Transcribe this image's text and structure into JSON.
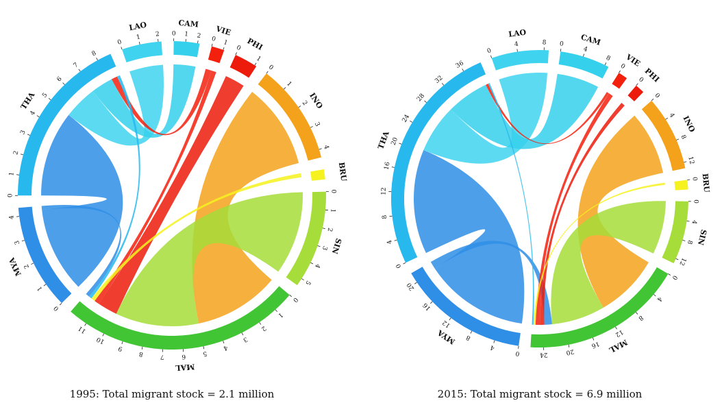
{
  "colors": {
    "THA": "#27b8ee",
    "LAO": "#3fd3f0",
    "CAM": "#35d0ec",
    "VIE": "#f2200d",
    "PHI": "#ec1b0b",
    "INO": "#f4a21b",
    "BRU": "#f6f21f",
    "SIN": "#a6dd3a",
    "MAL": "#42c535",
    "MYA": "#2f8ee6"
  },
  "chart_data": [
    {
      "type": "chord",
      "caption": "1995: Total migrant stock = 2.1 million",
      "ribbon_receivers": [
        "THA",
        "MAL"
      ],
      "nodes": [
        {
          "id": "LAO",
          "label": "LAO",
          "color_key": "LAO",
          "ticks": [
            "0",
            "1",
            "2"
          ]
        },
        {
          "id": "CAM",
          "label": "CAM",
          "color_key": "CAM",
          "ticks": [
            "0",
            "1",
            "2"
          ]
        },
        {
          "id": "VIE",
          "label": "VIE",
          "color_key": "VIE",
          "ticks": [
            "0",
            "1"
          ]
        },
        {
          "id": "PHI",
          "label": "PHI",
          "color_key": "PHI",
          "ticks": [
            "0",
            "1"
          ]
        },
        {
          "id": "INO",
          "label": "INO",
          "color_key": "INO",
          "ticks": [
            "0",
            "1",
            "2",
            "3",
            "4"
          ]
        },
        {
          "id": "BRU",
          "label": "BRU",
          "color_key": "BRU",
          "ticks": []
        },
        {
          "id": "SIN",
          "label": "SIN",
          "color_key": "SIN",
          "ticks": [
            "0",
            "1",
            "2",
            "3",
            "4",
            "5"
          ]
        },
        {
          "id": "MAL",
          "label": "MAL",
          "color_key": "MAL",
          "ticks": [
            "0",
            "1",
            "2",
            "3",
            "4",
            "5",
            "6",
            "7",
            "8",
            "9",
            "10",
            "11"
          ]
        },
        {
          "id": "MYA",
          "label": "MYA",
          "color_key": "MYA",
          "ticks": [
            "0",
            "1",
            "2",
            "3",
            "4"
          ]
        },
        {
          "id": "THA",
          "label": "THA",
          "color_key": "THA",
          "ticks": [
            "0",
            "1",
            "2",
            "3",
            "4",
            "5",
            "6",
            "7",
            "8"
          ]
        }
      ],
      "flows": [
        {
          "from": "MYA",
          "to": "THA",
          "value": 4.3
        },
        {
          "from": "LAO",
          "to": "THA",
          "value": 1.7
        },
        {
          "from": "CAM",
          "to": "THA",
          "value": 1.1
        },
        {
          "from": "VIE",
          "to": "THA",
          "value": 0.3
        },
        {
          "from": "INO",
          "to": "MAL",
          "value": 4.3
        },
        {
          "from": "SIN",
          "to": "MAL",
          "value": 4.2
        },
        {
          "from": "PHI",
          "to": "MAL",
          "value": 1.0
        },
        {
          "from": "VIE",
          "to": "MAL",
          "value": 0.25
        },
        {
          "from": "BRU",
          "to": "MAL",
          "value": 0.2
        },
        {
          "from": "THA",
          "to": "MAL",
          "value": 0.15
        },
        {
          "from": "MYA",
          "to": "MAL",
          "value": 0.2
        }
      ]
    },
    {
      "type": "chord",
      "caption": "2015: Total migrant stock = 6.9 million",
      "ribbon_receivers": [
        "THA",
        "MAL"
      ],
      "nodes": [
        {
          "id": "LAO",
          "label": "LAO",
          "color_key": "LAO",
          "ticks": [
            "0",
            "4",
            "8"
          ]
        },
        {
          "id": "CAM",
          "label": "CAM",
          "color_key": "CAM",
          "ticks": [
            "0",
            "4",
            "8"
          ]
        },
        {
          "id": "VIE",
          "label": "VIE",
          "color_key": "VIE",
          "ticks": [
            "0"
          ]
        },
        {
          "id": "PHI",
          "label": "PHI",
          "color_key": "PHI",
          "ticks": [
            "0"
          ]
        },
        {
          "id": "INO",
          "label": "INO",
          "color_key": "INO",
          "ticks": [
            "0",
            "4",
            "8",
            "12"
          ]
        },
        {
          "id": "BRU",
          "label": "BRU",
          "color_key": "BRU",
          "ticks": [
            "0"
          ]
        },
        {
          "id": "SIN",
          "label": "SIN",
          "color_key": "SIN",
          "ticks": [
            "0",
            "4",
            "8",
            "12"
          ]
        },
        {
          "id": "MAL",
          "label": "MAL",
          "color_key": "MAL",
          "ticks": [
            "0",
            "4",
            "8",
            "12",
            "16",
            "20",
            "24"
          ]
        },
        {
          "id": "MYA",
          "label": "MYA",
          "color_key": "MYA",
          "ticks": [
            "0",
            "4",
            "8",
            "12",
            "16",
            "20"
          ]
        },
        {
          "id": "THA",
          "label": "THA",
          "color_key": "THA",
          "ticks": [
            "0",
            "4",
            "8",
            "12",
            "16",
            "20",
            "24",
            "28",
            "32",
            "36"
          ]
        }
      ],
      "flows": [
        {
          "from": "MYA",
          "to": "THA",
          "value": 20.5
        },
        {
          "from": "LAO",
          "to": "THA",
          "value": 9.5
        },
        {
          "from": "CAM",
          "to": "THA",
          "value": 8.3
        },
        {
          "from": "VIE",
          "to": "THA",
          "value": 0.5
        },
        {
          "from": "INO",
          "to": "MAL",
          "value": 12.5
        },
        {
          "from": "SIN",
          "to": "MAL",
          "value": 10.5
        },
        {
          "from": "MYA",
          "to": "MAL",
          "value": 1.5
        },
        {
          "from": "PHI",
          "to": "MAL",
          "value": 0.8
        },
        {
          "from": "VIE",
          "to": "MAL",
          "value": 0.9
        },
        {
          "from": "BRU",
          "to": "MAL",
          "value": 0.4
        },
        {
          "from": "THA",
          "to": "MAL",
          "value": 0.3
        }
      ]
    }
  ]
}
